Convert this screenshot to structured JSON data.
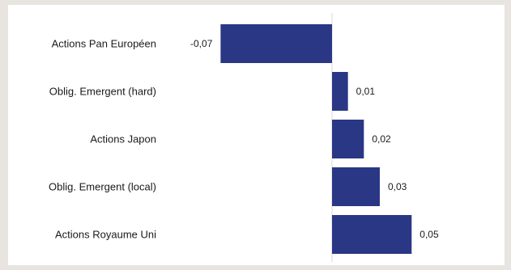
{
  "colors": {
    "background": "#e8e4df",
    "panel": "#ffffff",
    "bar": "#2a3785",
    "zero_line": "#d9d9d9"
  },
  "chart_data": {
    "type": "bar",
    "orientation": "horizontal",
    "title": "",
    "xlabel": "",
    "ylabel": "",
    "categories": [
      "Actions Pan Européen",
      "Oblig. Emergent (hard)",
      "Actions Japon",
      "Oblig. Emergent (local)",
      "Actions Royaume Uni"
    ],
    "values": [
      -0.07,
      0.01,
      0.02,
      0.03,
      0.05
    ],
    "value_labels": [
      "-0,07",
      "0,01",
      "0,02",
      "0,03",
      "0,05"
    ],
    "xlim": [
      -0.07,
      0.06
    ],
    "grid": false,
    "legend": "none"
  }
}
